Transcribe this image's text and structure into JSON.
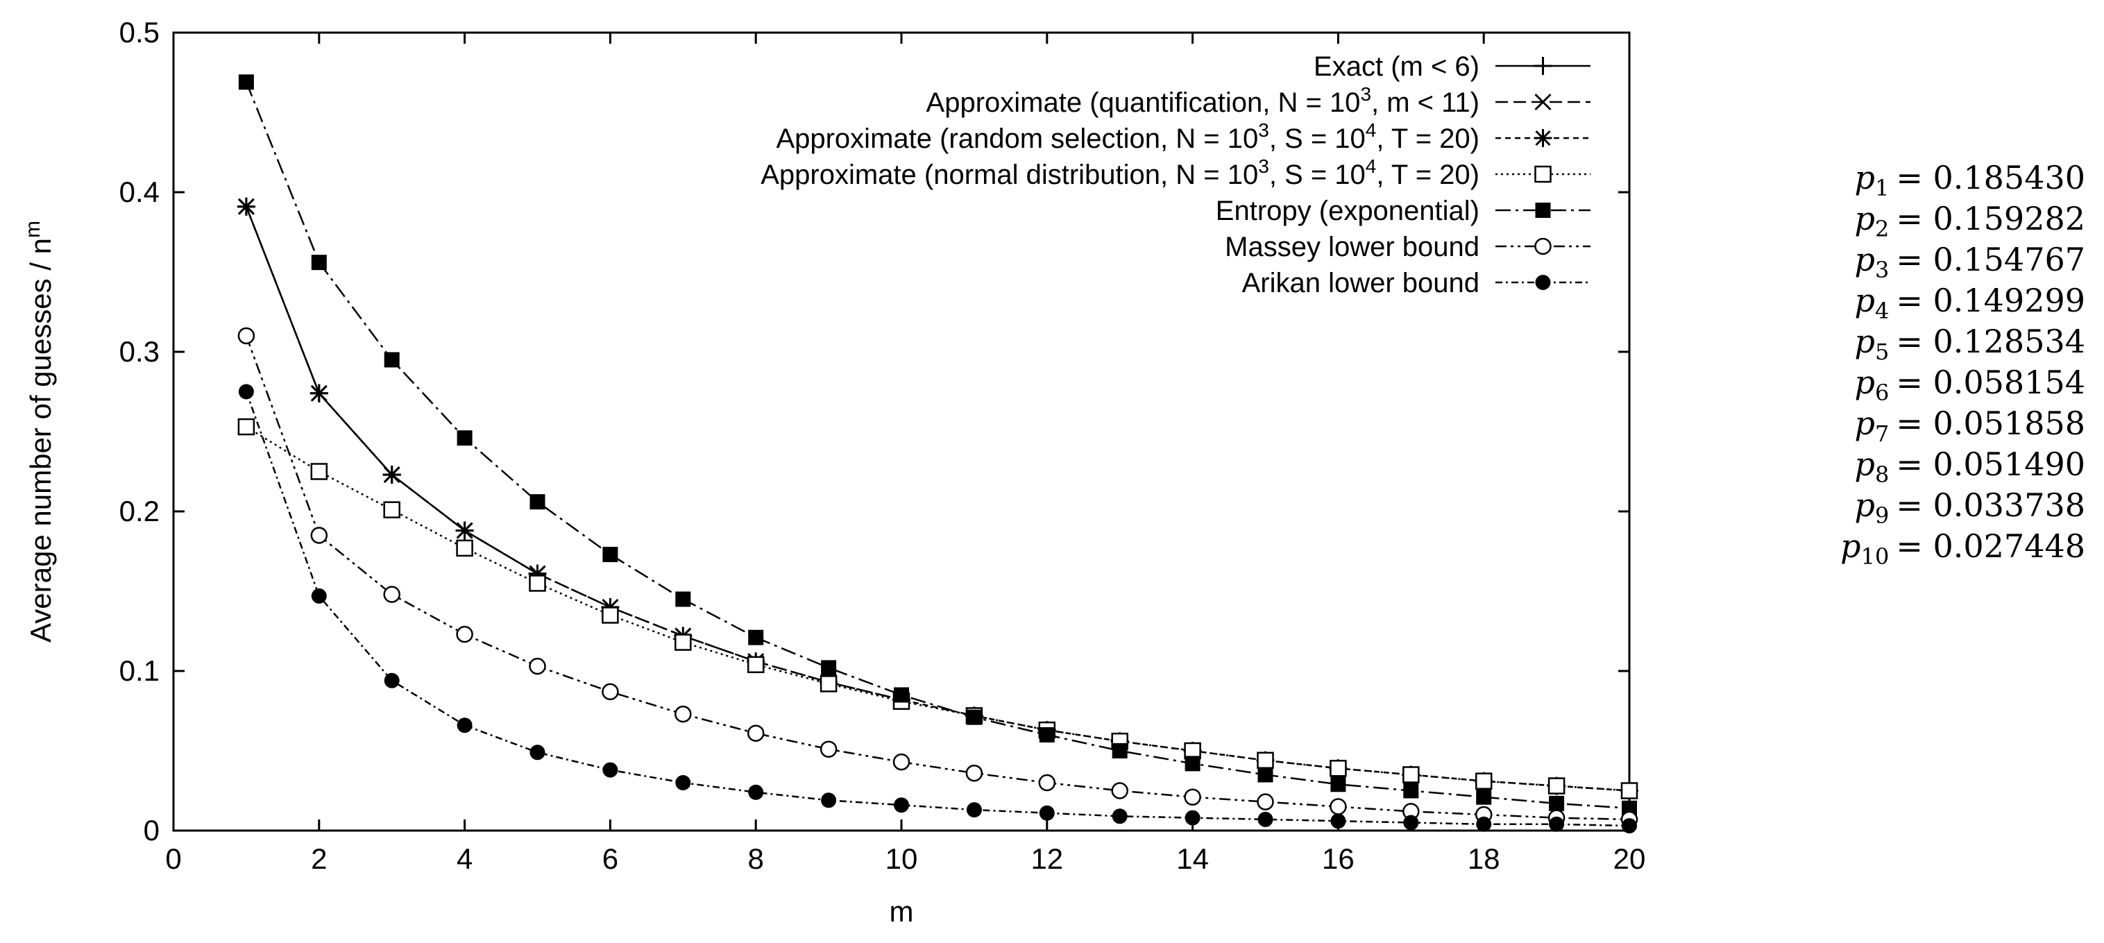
{
  "chart_data": {
    "type": "line",
    "title": "",
    "xlabel": "m",
    "ylabel_main": "Average number of guesses / n",
    "ylabel_sup": "m",
    "xlim": [
      0,
      20
    ],
    "ylim": [
      0,
      0.5
    ],
    "xticks": [
      "0",
      "2",
      "4",
      "6",
      "8",
      "10",
      "12",
      "14",
      "16",
      "18",
      "20"
    ],
    "yticks": [
      "0",
      "0.1",
      "0.2",
      "0.3",
      "0.4",
      "0.5"
    ],
    "legend_position": "top-right",
    "series": [
      {
        "key": "exact",
        "name_parts": [
          {
            "t": "Exact (m < 6)"
          }
        ],
        "marker": "plus",
        "dash": "none",
        "x": [
          1,
          2,
          3,
          4,
          5
        ],
        "y": [
          0.391,
          0.274,
          0.223,
          0.188,
          0.161
        ]
      },
      {
        "key": "quant",
        "name_parts": [
          {
            "t": "Approximate (quantification, N = 10"
          },
          {
            "t": "3",
            "sup": true
          },
          {
            "t": ", m < 11)"
          }
        ],
        "marker": "x",
        "dash": "18,8",
        "x": [
          1,
          2,
          3,
          4,
          5,
          6,
          7,
          8,
          9,
          10
        ],
        "y": [
          0.391,
          0.274,
          0.223,
          0.188,
          0.161,
          0.14,
          0.122,
          0.106,
          0.093,
          0.082
        ]
      },
      {
        "key": "random",
        "name_parts": [
          {
            "t": "Approximate (random selection, N = 10"
          },
          {
            "t": "3",
            "sup": true
          },
          {
            "t": ", S = 10"
          },
          {
            "t": "4",
            "sup": true
          },
          {
            "t": ", T = 20)"
          }
        ],
        "marker": "star",
        "dash": "8,6",
        "x": [
          1,
          2,
          3,
          4,
          5,
          6,
          7,
          8,
          9,
          10,
          11,
          12,
          13,
          14,
          15,
          16,
          17,
          18,
          19,
          20
        ],
        "y": [
          0.391,
          0.274,
          0.223,
          0.188,
          0.161,
          0.14,
          0.122,
          0.106,
          0.093,
          0.082,
          0.072,
          0.063,
          0.056,
          0.05,
          0.044,
          0.039,
          0.035,
          0.031,
          0.028,
          0.025
        ]
      },
      {
        "key": "normal",
        "name_parts": [
          {
            "t": "Approximate (normal distribution, N = 10"
          },
          {
            "t": "3",
            "sup": true
          },
          {
            "t": ", S = 10"
          },
          {
            "t": "4",
            "sup": true
          },
          {
            "t": ", T = 20)"
          }
        ],
        "marker": "square-open",
        "dash": "3,5",
        "x": [
          1,
          2,
          3,
          4,
          5,
          6,
          7,
          8,
          9,
          10,
          11,
          12,
          13,
          14,
          15,
          16,
          17,
          18,
          19,
          20
        ],
        "y": [
          0.253,
          0.225,
          0.201,
          0.177,
          0.155,
          0.135,
          0.118,
          0.104,
          0.092,
          0.081,
          0.072,
          0.063,
          0.056,
          0.05,
          0.044,
          0.039,
          0.035,
          0.031,
          0.028,
          0.025
        ]
      },
      {
        "key": "entropy",
        "name_parts": [
          {
            "t": "Entropy (exponential)"
          }
        ],
        "marker": "square-filled",
        "dash": "22,7,4,7",
        "x": [
          1,
          2,
          3,
          4,
          5,
          6,
          7,
          8,
          9,
          10,
          11,
          12,
          13,
          14,
          15,
          16,
          17,
          18,
          19,
          20
        ],
        "y": [
          0.469,
          0.356,
          0.295,
          0.246,
          0.206,
          0.173,
          0.145,
          0.121,
          0.102,
          0.085,
          0.071,
          0.06,
          0.05,
          0.042,
          0.035,
          0.029,
          0.025,
          0.021,
          0.017,
          0.014
        ]
      },
      {
        "key": "massey",
        "name_parts": [
          {
            "t": "Massey lower bound"
          }
        ],
        "marker": "circle-open",
        "dash": "16,6,4,6,4,6",
        "x": [
          1,
          2,
          3,
          4,
          5,
          6,
          7,
          8,
          9,
          10,
          11,
          12,
          13,
          14,
          15,
          16,
          17,
          18,
          19,
          20
        ],
        "y": [
          0.31,
          0.185,
          0.148,
          0.123,
          0.103,
          0.087,
          0.073,
          0.061,
          0.051,
          0.043,
          0.036,
          0.03,
          0.025,
          0.021,
          0.018,
          0.015,
          0.012,
          0.01,
          0.008,
          0.007
        ]
      },
      {
        "key": "arikan",
        "name_parts": [
          {
            "t": "Arikan lower bound"
          }
        ],
        "marker": "circle-filled",
        "dash": "10,5,3,5",
        "x": [
          1,
          2,
          3,
          4,
          5,
          6,
          7,
          8,
          9,
          10,
          11,
          12,
          13,
          14,
          15,
          16,
          17,
          18,
          19,
          20
        ],
        "y": [
          0.275,
          0.147,
          0.094,
          0.066,
          0.049,
          0.038,
          0.03,
          0.024,
          0.019,
          0.016,
          0.013,
          0.011,
          0.009,
          0.008,
          0.007,
          0.006,
          0.005,
          0.004,
          0.004,
          0.003
        ]
      }
    ]
  },
  "probabilities": [
    {
      "sym": "p",
      "sub": "1",
      "val": "= 0.185430"
    },
    {
      "sym": "p",
      "sub": "2",
      "val": "= 0.159282"
    },
    {
      "sym": "p",
      "sub": "3",
      "val": "= 0.154767"
    },
    {
      "sym": "p",
      "sub": "4",
      "val": "= 0.149299"
    },
    {
      "sym": "p",
      "sub": "5",
      "val": "= 0.128534"
    },
    {
      "sym": "p",
      "sub": "6",
      "val": "= 0.058154"
    },
    {
      "sym": "p",
      "sub": "7",
      "val": "= 0.051858"
    },
    {
      "sym": "p",
      "sub": "8",
      "val": "= 0.051490"
    },
    {
      "sym": "p",
      "sub": "9",
      "val": "= 0.033738"
    },
    {
      "sym": "p",
      "sub": "10",
      "val": "= 0.027448"
    }
  ]
}
